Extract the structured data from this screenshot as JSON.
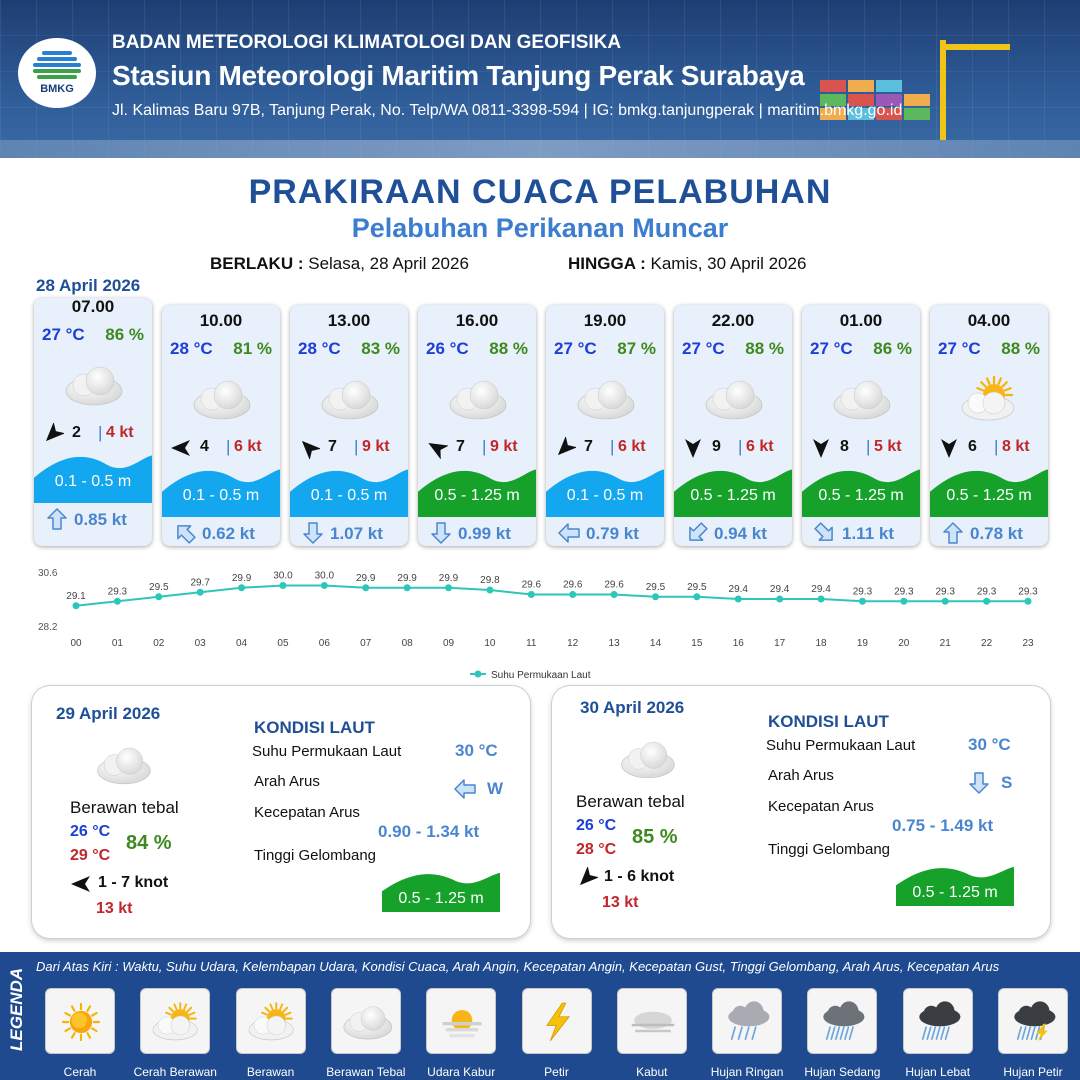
{
  "header": {
    "logo_text": "BMKG",
    "org": "BADAN METEOROLOGI KLIMATOLOGI DAN GEOFISIKA",
    "station": "Stasiun Meteorologi Maritim Tanjung Perak Surabaya",
    "address": "Jl. Kalimas Baru 97B, Tanjung Perak, No. Telp/WA 0811-3398-594 | IG: bmkg.tanjungperak | maritim.bmkg.go.id"
  },
  "title": "PRAKIRAAN CUACA PELABUHAN",
  "subtitle": "Pelabuhan Perikanan Muncar",
  "validity": {
    "from_label": "BERLAKU :",
    "from_value": "Selasa, 28 April 2026",
    "to_label": "HINGGA :",
    "to_value": "Kamis, 30 April 2026"
  },
  "forecast_date": "28 April 2026",
  "cards": [
    {
      "time": "07.00",
      "temp": "27 °C",
      "hum": "86 %",
      "icon": "berawan-tebal-icon",
      "wind_dir_deg": 225,
      "wind_speed": "2",
      "sep": "|",
      "gust": "4 kt",
      "wave": "0.1 - 0.5 m",
      "wave_level": "low",
      "cur_dir": "up",
      "cur_speed": "0.85 kt"
    },
    {
      "time": "10.00",
      "temp": "28 °C",
      "hum": "81 %",
      "icon": "berawan-tebal-icon",
      "wind_dir_deg": 270,
      "wind_speed": "4",
      "sep": "|",
      "gust": "6 kt",
      "wave": "0.1 - 0.5 m",
      "wave_level": "low",
      "cur_dir": "up-left",
      "cur_speed": "0.62 kt"
    },
    {
      "time": "13.00",
      "temp": "28 °C",
      "hum": "83 %",
      "icon": "berawan-tebal-icon",
      "wind_dir_deg": 315,
      "wind_speed": "7",
      "sep": "|",
      "gust": "9 kt",
      "wave": "0.1 - 0.5 m",
      "wave_level": "low",
      "cur_dir": "down",
      "cur_speed": "1.07 kt"
    },
    {
      "time": "16.00",
      "temp": "26 °C",
      "hum": "88 %",
      "icon": "berawan-tebal-icon",
      "wind_dir_deg": 300,
      "wind_speed": "7",
      "sep": "|",
      "gust": "9 kt",
      "wave": "0.5 - 1.25 m",
      "wave_level": "moderate",
      "cur_dir": "down",
      "cur_speed": "0.99 kt"
    },
    {
      "time": "19.00",
      "temp": "27 °C",
      "hum": "87 %",
      "icon": "berawan-tebal-icon",
      "wind_dir_deg": 225,
      "wind_speed": "7",
      "sep": "|",
      "gust": "6 kt",
      "wave": "0.1 - 0.5 m",
      "wave_level": "low",
      "cur_dir": "left",
      "cur_speed": "0.79 kt"
    },
    {
      "time": "22.00",
      "temp": "27 °C",
      "hum": "88 %",
      "icon": "berawan-tebal-icon",
      "wind_dir_deg": 180,
      "wind_speed": "9",
      "sep": "|",
      "gust": "6 kt",
      "wave": "0.5 - 1.25 m",
      "wave_level": "moderate",
      "cur_dir": "down-left",
      "cur_speed": "0.94 kt"
    },
    {
      "time": "01.00",
      "temp": "27 °C",
      "hum": "86 %",
      "icon": "berawan-tebal-icon",
      "wind_dir_deg": 180,
      "wind_speed": "8",
      "sep": "|",
      "gust": "5 kt",
      "wave": "0.5 - 1.25 m",
      "wave_level": "moderate",
      "cur_dir": "down-right",
      "cur_speed": "1.11 kt"
    },
    {
      "time": "04.00",
      "temp": "27 °C",
      "hum": "88 %",
      "icon": "cerah-berawan-icon",
      "wind_dir_deg": 180,
      "wind_speed": "6",
      "sep": "|",
      "gust": "8 kt",
      "wave": "0.5 - 1.25 m",
      "wave_level": "moderate",
      "cur_dir": "up",
      "cur_speed": "0.78 kt"
    }
  ],
  "chart_data": {
    "type": "line",
    "x": [
      "00",
      "01",
      "02",
      "03",
      "04",
      "05",
      "06",
      "07",
      "08",
      "09",
      "10",
      "11",
      "12",
      "13",
      "14",
      "15",
      "16",
      "17",
      "18",
      "19",
      "20",
      "21",
      "22",
      "23"
    ],
    "series": [
      {
        "name": "Suhu Permukaan Laut",
        "values": [
          29.1,
          29.3,
          29.5,
          29.7,
          29.9,
          30.0,
          30.0,
          29.9,
          29.9,
          29.9,
          29.8,
          29.6,
          29.6,
          29.6,
          29.5,
          29.5,
          29.4,
          29.4,
          29.4,
          29.3,
          29.3,
          29.3,
          29.3,
          29.3
        ]
      }
    ],
    "value_labels": [
      "29.1",
      "29.3",
      "29.5",
      "29.7",
      "29.9",
      "30.0",
      "30.0",
      "29.9",
      "29.9",
      "29.9",
      "29.8",
      "29.6",
      "29.6",
      "29.6",
      "29.5",
      "29.5",
      "29.4",
      "29.4",
      "29.4",
      "29.3",
      "29.3",
      "29.3",
      "29.3",
      "29.3"
    ],
    "ylim": [
      28.2,
      30.6
    ],
    "ytick_labels": [
      "30.6",
      "28.2"
    ],
    "legend": "bottom-center",
    "color": "#2cc7b8",
    "grid": false
  },
  "day_panels": [
    {
      "date": "29 April 2026",
      "icon": "berawan-tebal-icon",
      "condition": "Berawan tebal",
      "temp_min": "26 °C",
      "temp_max": "29 °C",
      "humidity": "84 %",
      "wind_dir_deg": 270,
      "wind": "1  - 7 knot",
      "gust": "13 kt",
      "sea": {
        "heading": "KONDISI LAUT",
        "sst_label": "Suhu Permukaan Laut",
        "sst": "30 °C",
        "current_dir_label": "Arah Arus",
        "current_dir": "W",
        "current_dir_icon": "left",
        "current_speed_label": "Kecepatan Arus",
        "current_speed": "0.90  - 1.34 kt",
        "wave_label": "Tinggi Gelombang",
        "wave": "0.5 - 1.25 m"
      }
    },
    {
      "date": "30 April 2026",
      "icon": "berawan-tebal-icon",
      "condition": "Berawan tebal",
      "temp_min": "26 °C",
      "temp_max": "28 °C",
      "humidity": "85 %",
      "wind_dir_deg": 225,
      "wind": "1  - 6 knot",
      "gust": "13 kt",
      "sea": {
        "heading": "KONDISI LAUT",
        "sst_label": "Suhu Permukaan Laut",
        "sst": "30 °C",
        "current_dir_label": "Arah Arus",
        "current_dir": "S",
        "current_dir_icon": "down",
        "current_speed_label": "Kecepatan Arus",
        "current_speed": "0.75  - 1.49 kt",
        "wave_label": "Tinggi Gelombang",
        "wave": "0.5 - 1.25 m"
      }
    }
  ],
  "legend": {
    "title": "LEGENDA",
    "description": "Dari Atas Kiri : Waktu, Suhu Udara, Kelembapan Udara, Kondisi Cuaca, Arah Angin, Kecepatan Angin, Kecepatan Gust, Tinggi Gelombang, Arah Arus, Kecepatan Arus",
    "items": [
      {
        "label": "Cerah",
        "icon": "cerah-icon"
      },
      {
        "label": "Cerah Berawan",
        "icon": "cerah-berawan-icon"
      },
      {
        "label": "Berawan",
        "icon": "berawan-icon"
      },
      {
        "label": "Berawan Tebal",
        "icon": "berawan-tebal-icon"
      },
      {
        "label": "Udara Kabur",
        "icon": "udara-kabur-icon"
      },
      {
        "label": "Petir",
        "icon": "petir-icon"
      },
      {
        "label": "Kabut",
        "icon": "kabut-icon"
      },
      {
        "label": "Hujan Ringan",
        "icon": "hujan-ringan-icon"
      },
      {
        "label": "Hujan Sedang",
        "icon": "hujan-sedang-icon"
      },
      {
        "label": "Hujan Lebat",
        "icon": "hujan-lebat-icon"
      },
      {
        "label": "Hujan Petir",
        "icon": "hujan-petir-icon"
      }
    ]
  },
  "colors": {
    "wave_low": "#12a7ee",
    "wave_moderate": "#16a12a",
    "title": "#1f4f96",
    "subtitle": "#3b7ed0",
    "legend_bg": "#1f4a8f"
  }
}
